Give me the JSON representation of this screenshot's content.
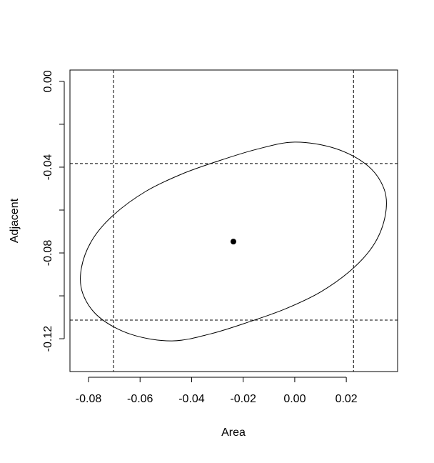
{
  "chart_data": {
    "type": "scatter",
    "xlabel": "Area",
    "ylabel": "Adjacent",
    "xlim": [
      -0.0872,
      0.0399
    ],
    "ylim": [
      -0.1353,
      0.0053
    ],
    "xticks": [
      {
        "value": -0.08,
        "label": "-0.08"
      },
      {
        "value": -0.06,
        "label": "-0.06"
      },
      {
        "value": -0.04,
        "label": "-0.04"
      },
      {
        "value": -0.02,
        "label": "-0.02"
      },
      {
        "value": 0,
        "label": "0.00"
      },
      {
        "value": 0.02,
        "label": "0.02"
      }
    ],
    "yticks": [
      {
        "value": 0,
        "label": "0.00"
      },
      {
        "value": -0.02,
        "label": null
      },
      {
        "value": -0.04,
        "label": "-0.04"
      },
      {
        "value": -0.06,
        "label": null
      },
      {
        "value": -0.08,
        "label": "-0.08"
      },
      {
        "value": -0.1,
        "label": null
      },
      {
        "value": -0.12,
        "label": "-0.12"
      }
    ],
    "ellipse": {
      "color": "#000000",
      "x": [
        0.0,
        0.0158,
        0.0283,
        0.0347,
        0.0352,
        0.0311,
        0.0228,
        0.0103,
        -0.0035,
        -0.0174,
        -0.0326,
        -0.0476,
        -0.0634,
        -0.0758,
        -0.0822,
        -0.0828,
        -0.0786,
        -0.0703,
        -0.0578,
        -0.044,
        -0.0301,
        -0.0149
      ],
      "y": [
        -0.0283,
        -0.0313,
        -0.0393,
        -0.0503,
        -0.062,
        -0.0753,
        -0.087,
        -0.098,
        -0.106,
        -0.112,
        -0.1177,
        -0.121,
        -0.118,
        -0.11,
        -0.099,
        -0.0873,
        -0.074,
        -0.0623,
        -0.0513,
        -0.0433,
        -0.0373,
        -0.0317
      ]
    },
    "point": {
      "x": -0.0238,
      "y": -0.0747,
      "color": "#000000"
    },
    "vlines": [
      -0.0703,
      0.0228
    ],
    "hlines": [
      -0.0383,
      -0.1113
    ]
  }
}
